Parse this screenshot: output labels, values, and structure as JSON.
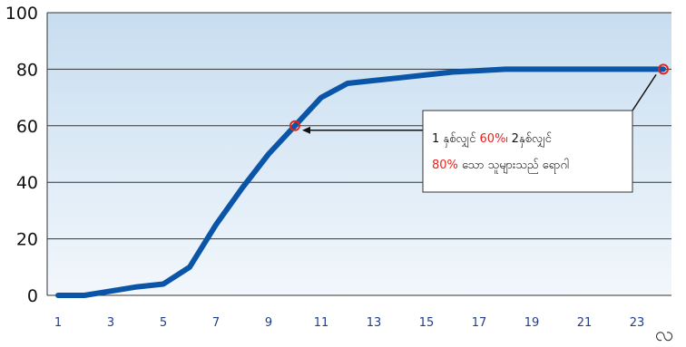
{
  "chart_data": {
    "type": "line",
    "x": [
      1,
      2,
      3,
      4,
      5,
      6,
      7,
      8,
      9,
      10,
      11,
      12,
      13,
      14,
      15,
      16,
      17,
      18,
      19,
      20,
      21,
      22,
      23,
      24
    ],
    "values": [
      0,
      0,
      1.5,
      3,
      4,
      10,
      25,
      38,
      50,
      60,
      70,
      75,
      76,
      77,
      78,
      79,
      79.5,
      80,
      80,
      80,
      80,
      80,
      80,
      80
    ],
    "xticks": [
      "1",
      "3",
      "5",
      "7",
      "9",
      "11",
      "13",
      "15",
      "17",
      "19",
      "21",
      "23"
    ],
    "yticks": [
      "0",
      "20",
      "40",
      "60",
      "80",
      "100"
    ],
    "ylim": [
      0,
      100
    ],
    "xlim": [
      1,
      24
    ],
    "grid": true,
    "colors": {
      "line": "#0a55a8",
      "plot_bg_top": "#c7ddf0",
      "plot_bg_bottom": "#f2f7fc",
      "highlight": "#e8221c"
    },
    "highlights": [
      {
        "x": 10,
        "y": 60
      },
      {
        "x": 24,
        "y": 80
      }
    ],
    "annotation": {
      "line1_pre": "1 နှစ်လျှင် ",
      "line1_red": "60%",
      "line1_post": "၊ 2နှစ်လျှင်",
      "line2_red": "80%",
      "line2_post": " သော သူများသည် ရောဂါ"
    },
    "corner_glyph": "လ"
  }
}
